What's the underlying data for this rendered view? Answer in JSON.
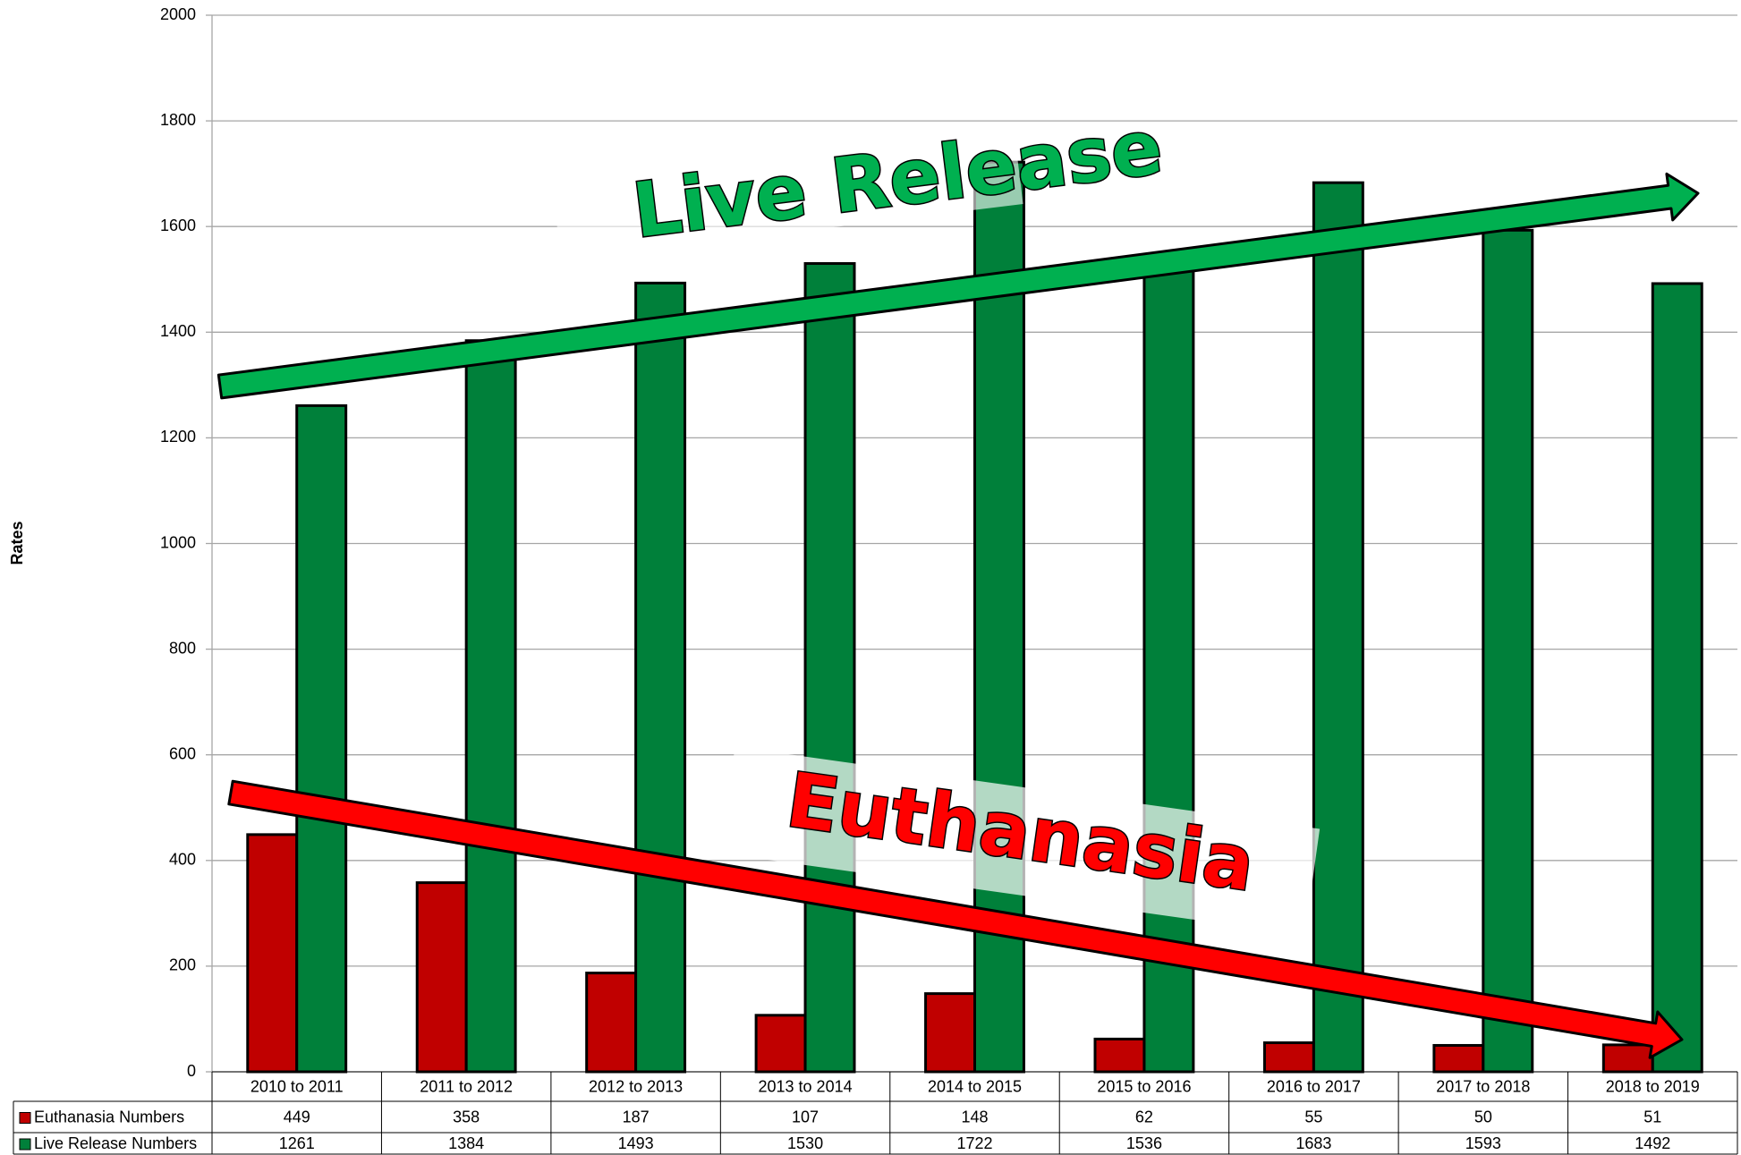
{
  "chart_data": {
    "type": "bar",
    "y_label": "Rates",
    "categories": [
      "2010 to 2011",
      "2011 to 2012",
      "2012 to 2013",
      "2013 to 2014",
      "2014 to 2015",
      "2015 to 2016",
      "2016 to 2017",
      "2017 to 2018",
      "2018 to 2019"
    ],
    "series": [
      {
        "name": "Euthanasia Numbers",
        "color": "#c00000",
        "values": [
          449,
          358,
          187,
          107,
          148,
          62,
          55,
          50,
          51
        ]
      },
      {
        "name": "Live Release Numbers",
        "color": "#00803a",
        "values": [
          1261,
          1384,
          1493,
          1530,
          1722,
          1536,
          1683,
          1593,
          1492
        ]
      }
    ],
    "ylim": [
      0,
      2000
    ],
    "yticks": [
      0,
      200,
      400,
      600,
      800,
      1000,
      1200,
      1400,
      1600,
      1800,
      2000
    ],
    "grid": true,
    "annotations": [
      "Live Release",
      "Euthanasia"
    ]
  }
}
